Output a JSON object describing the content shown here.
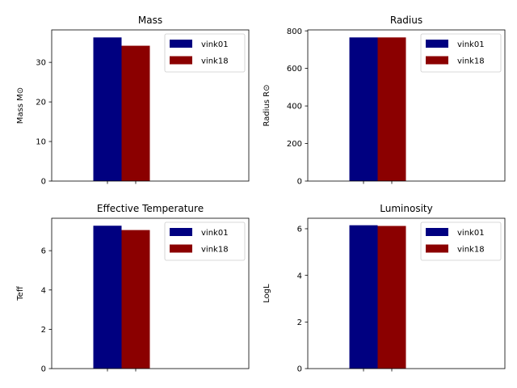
{
  "colors": {
    "vink01": "#000080",
    "vink18": "#8b0000",
    "axes": "#000000",
    "legend_border": "#cccccc"
  },
  "chart_data": [
    {
      "type": "bar",
      "title": "Mass",
      "ylabel": "Mass M⊙",
      "xlabel": "",
      "ylim": [
        0,
        38.2
      ],
      "yticks": [
        0,
        10,
        20,
        30
      ],
      "legend_loc": "upper right",
      "series": [
        {
          "name": "vink01",
          "values": [
            36.3
          ]
        },
        {
          "name": "vink18",
          "values": [
            34.2
          ]
        }
      ]
    },
    {
      "type": "bar",
      "title": "Radius",
      "ylabel": "Radius R⊙",
      "xlabel": "",
      "ylim": [
        0,
        805
      ],
      "yticks": [
        0,
        200,
        400,
        600,
        800
      ],
      "legend_loc": "upper right",
      "series": [
        {
          "name": "vink01",
          "values": [
            765
          ]
        },
        {
          "name": "vink18",
          "values": [
            765
          ]
        }
      ]
    },
    {
      "type": "bar",
      "title": "Effective Temperature",
      "ylabel": "Teff",
      "xlabel": "",
      "ylim": [
        0,
        7.65
      ],
      "yticks": [
        0,
        2,
        4,
        6
      ],
      "legend_loc": "upper right",
      "series": [
        {
          "name": "vink01",
          "values": [
            7.27
          ]
        },
        {
          "name": "vink18",
          "values": [
            7.05
          ]
        }
      ]
    },
    {
      "type": "bar",
      "title": "Luminosity",
      "ylabel": "LogL",
      "xlabel": "",
      "ylim": [
        0,
        6.45
      ],
      "yticks": [
        0,
        2,
        4,
        6
      ],
      "legend_loc": "upper right",
      "series": [
        {
          "name": "vink01",
          "values": [
            6.15
          ]
        },
        {
          "name": "vink18",
          "values": [
            6.12
          ]
        }
      ]
    }
  ]
}
